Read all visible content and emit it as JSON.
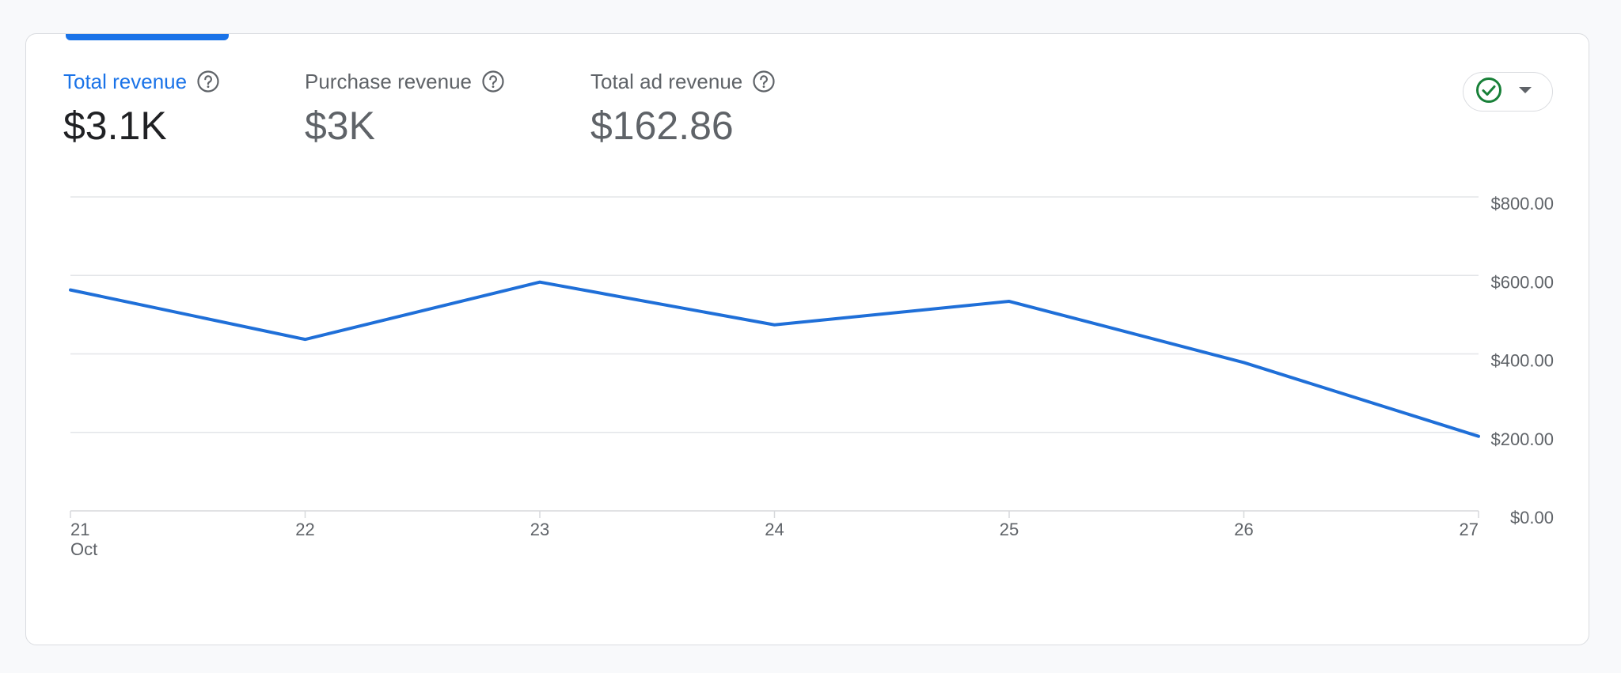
{
  "metrics": [
    {
      "label": "Total revenue",
      "value": "$3.1K",
      "active": true
    },
    {
      "label": "Purchase revenue",
      "value": "$3K",
      "active": false
    },
    {
      "label": "Total ad revenue",
      "value": "$162.86",
      "active": false
    }
  ],
  "colors": {
    "accent": "#1a73e8",
    "line": "#1f6fd8",
    "check": "#188038",
    "grid": "#e3e5e8",
    "axis_text": "#5f6368"
  },
  "compare_button": {
    "icon": "check-circle-icon",
    "dropdown_icon": "caret-down-icon"
  },
  "chart_data": {
    "type": "line",
    "x": [
      "21",
      "22",
      "23",
      "24",
      "25",
      "26",
      "27"
    ],
    "x_sublabel": "Oct",
    "y_ticks": [
      "$0.00",
      "$200.00",
      "$400.00",
      "$600.00",
      "$800.00"
    ],
    "ylim": [
      0,
      800
    ],
    "grid": true,
    "series": [
      {
        "values": [
          563,
          437,
          583,
          474,
          534,
          378,
          190
        ]
      }
    ]
  }
}
